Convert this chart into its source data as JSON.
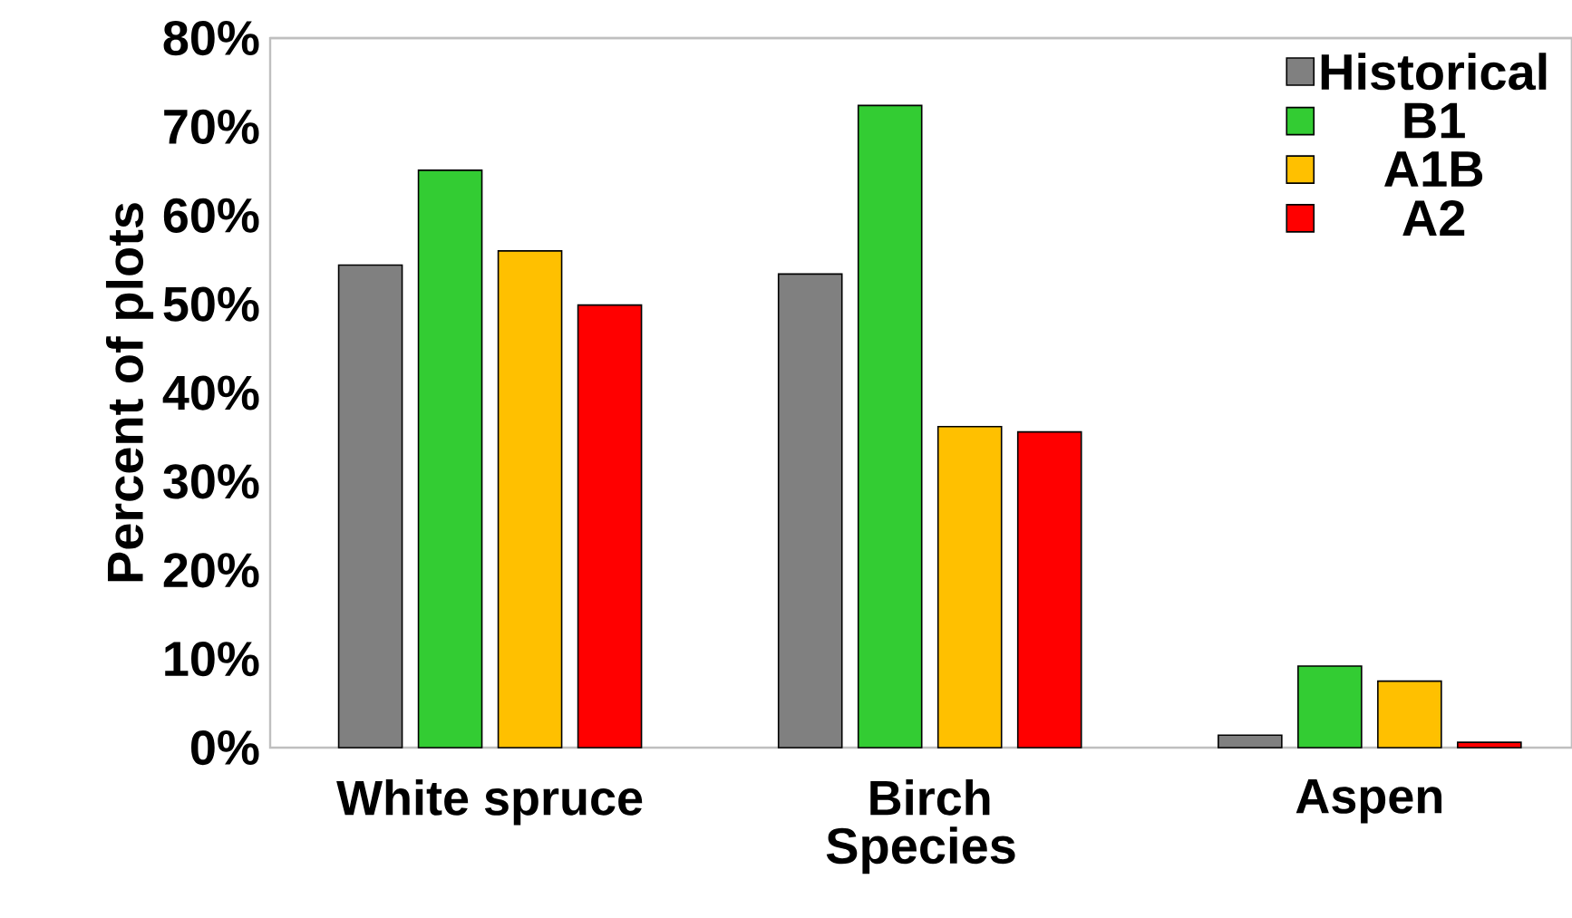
{
  "chart_data": {
    "type": "bar",
    "xlabel": "Species",
    "ylabel": "Percent of plots",
    "categories": [
      "White spruce",
      "Birch",
      "Aspen"
    ],
    "series": [
      {
        "name": "Historical",
        "color": "#808080",
        "values": [
          54.4,
          53.4,
          1.4
        ]
      },
      {
        "name": "B1",
        "color": "#33cc33",
        "values": [
          65.1,
          72.4,
          9.2
        ]
      },
      {
        "name": "A1B",
        "color": "#ffc000",
        "values": [
          56.0,
          36.2,
          7.5
        ]
      },
      {
        "name": "A2",
        "color": "#ff0000",
        "values": [
          49.9,
          35.6,
          0.6
        ]
      }
    ],
    "ylim": [
      0,
      80
    ],
    "yticks": [
      {
        "value": 0,
        "label": "0%"
      },
      {
        "value": 10,
        "label": "10%"
      },
      {
        "value": 20,
        "label": "20%"
      },
      {
        "value": 30,
        "label": "30%"
      },
      {
        "value": 40,
        "label": "40%"
      },
      {
        "value": 50,
        "label": "50%"
      },
      {
        "value": 60,
        "label": "60%"
      },
      {
        "value": 70,
        "label": "70%"
      },
      {
        "value": 80,
        "label": "80%"
      }
    ],
    "legend": "top right"
  }
}
